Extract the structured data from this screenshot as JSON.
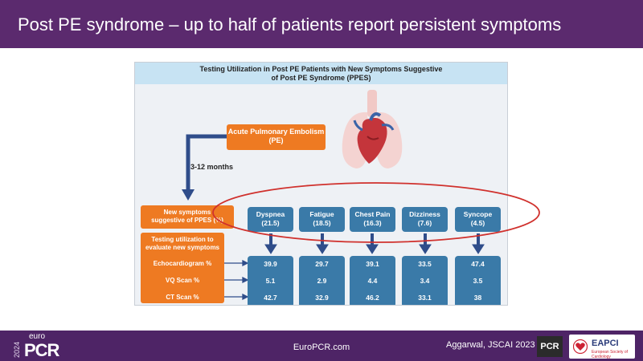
{
  "slide": {
    "title": "Post PE syndrome – up to half of patients report persistent symptoms"
  },
  "figure": {
    "title_line1": "Testing Utilization in Post PE Patients with New Symptoms Suggestive",
    "title_line2": "of Post PE Syndrome (PPES)",
    "ape_line1": "Acute Pulmonary Embolism",
    "ape_line2": "(PE)",
    "interval": "3-12 months",
    "new_symptoms_line1": "New symptoms",
    "new_symptoms_line2": "suggestive of PPES (%)",
    "testing_line1": "Testing utilization to",
    "testing_line2": "evaluate new symptoms",
    "tests": [
      "Echocardiogram %",
      "VQ Scan %",
      "CT Scan %"
    ],
    "symptoms": [
      {
        "name": "Dyspnea",
        "pct": "(21.5)",
        "echo": "39.9",
        "vq": "5.1",
        "ct": "42.7"
      },
      {
        "name": "Fatigue",
        "pct": "(18.5)",
        "echo": "29.7",
        "vq": "2.9",
        "ct": "32.9"
      },
      {
        "name": "Chest Pain",
        "pct": "(16.3)",
        "echo": "39.1",
        "vq": "4.4",
        "ct": "46.2"
      },
      {
        "name": "Dizziness",
        "pct": "(7.6)",
        "echo": "33.5",
        "vq": "3.4",
        "ct": "33.1"
      },
      {
        "name": "Syncope",
        "pct": "(4.5)",
        "echo": "47.4",
        "vq": "3.5",
        "ct": "38"
      }
    ],
    "colors": {
      "orange": "#ee7a22",
      "blue": "#3a7aa8",
      "navy": "#2f4d8a",
      "highlight": "#d0312d"
    }
  },
  "footer": {
    "logo_year": "2024",
    "logo_euro": "euro",
    "logo_pcr": "PCR",
    "site": "EuroPCR.com",
    "citation": "Aggarwal, JSCAI 2023",
    "badge": "PCR",
    "eapci": "EAPCI",
    "eapci_sub": "European Society of Cardiology"
  }
}
